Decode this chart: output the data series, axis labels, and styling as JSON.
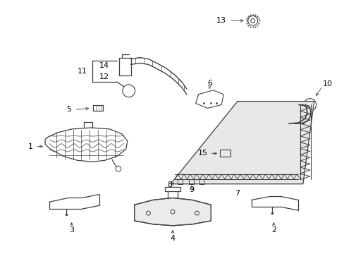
{
  "background_color": "#ffffff",
  "line_color": "#404040",
  "label_color": "#000000",
  "fig_width": 4.89,
  "fig_height": 3.6,
  "dpi": 100,
  "label_fontsize": 8,
  "annotation_lw": 0.6
}
